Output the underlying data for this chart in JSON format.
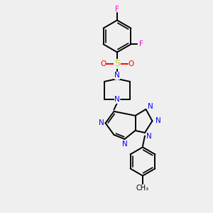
{
  "background_color": "#efefef",
  "bond_color": "#000000",
  "nitrogen_color": "#0000ff",
  "oxygen_color": "#ff0000",
  "sulfur_color": "#ddcc00",
  "fluorine_color": "#ff00cc",
  "figsize": [
    3.0,
    3.0
  ],
  "dpi": 100,
  "xlim": [
    0,
    10
  ],
  "ylim": [
    0,
    10
  ]
}
